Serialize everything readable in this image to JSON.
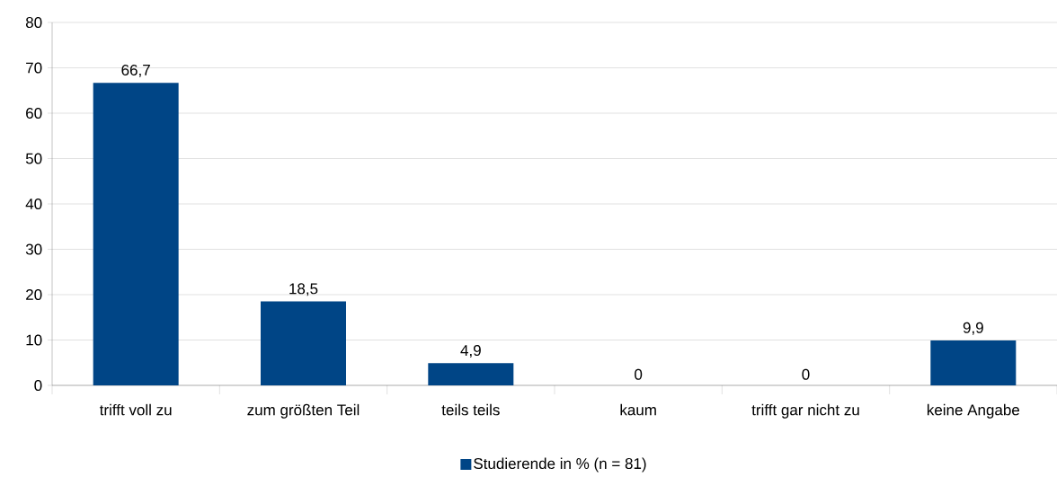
{
  "chart_data": {
    "type": "bar",
    "categories": [
      "trifft voll zu",
      "zum größten Teil",
      "teils teils",
      "kaum",
      "trifft gar nicht zu",
      "keine Angabe"
    ],
    "series": [
      {
        "name": "Studierende in % (n = 81)",
        "color": "#004586",
        "values": [
          66.7,
          18.5,
          4.9,
          0,
          0,
          9.9
        ],
        "value_labels": [
          "66,7",
          "18,5",
          "4,9",
          "0",
          "0",
          "9,9"
        ]
      }
    ],
    "ylim": [
      0,
      80
    ],
    "yticks": [
      0,
      10,
      20,
      30,
      40,
      50,
      60,
      70,
      80
    ],
    "grid": "y",
    "legend": "bottom"
  }
}
